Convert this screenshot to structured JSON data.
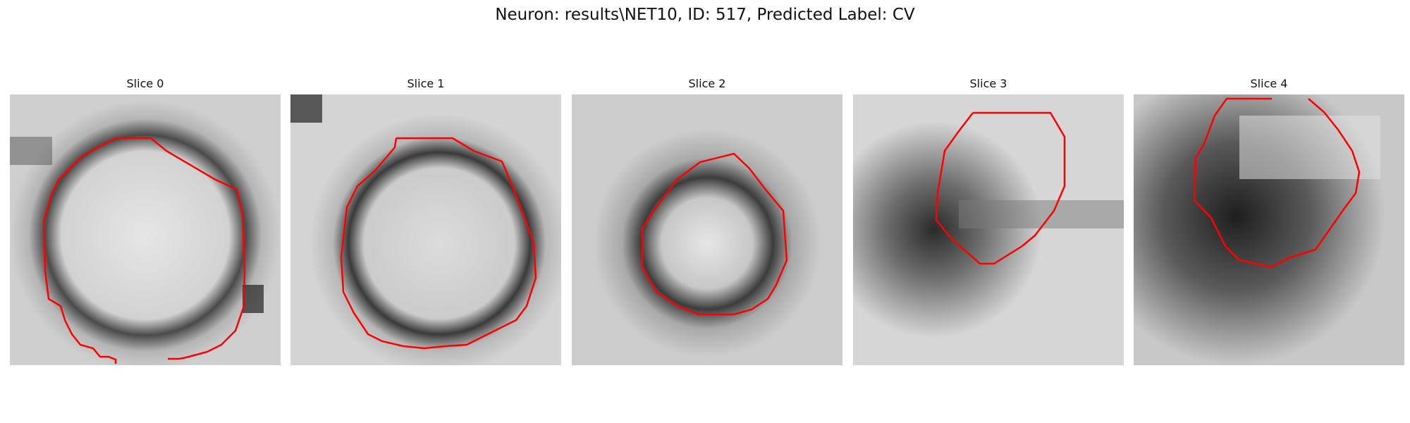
{
  "figure": {
    "title": "Neuron: results\\NET10, ID: 517, Predicted Label: CV",
    "contour_color": "#ff0000"
  },
  "slices": [
    {
      "title": "Slice 0"
    },
    {
      "title": "Slice 1"
    },
    {
      "title": "Slice 2"
    },
    {
      "title": "Slice 3"
    },
    {
      "title": "Slice 4"
    }
  ]
}
